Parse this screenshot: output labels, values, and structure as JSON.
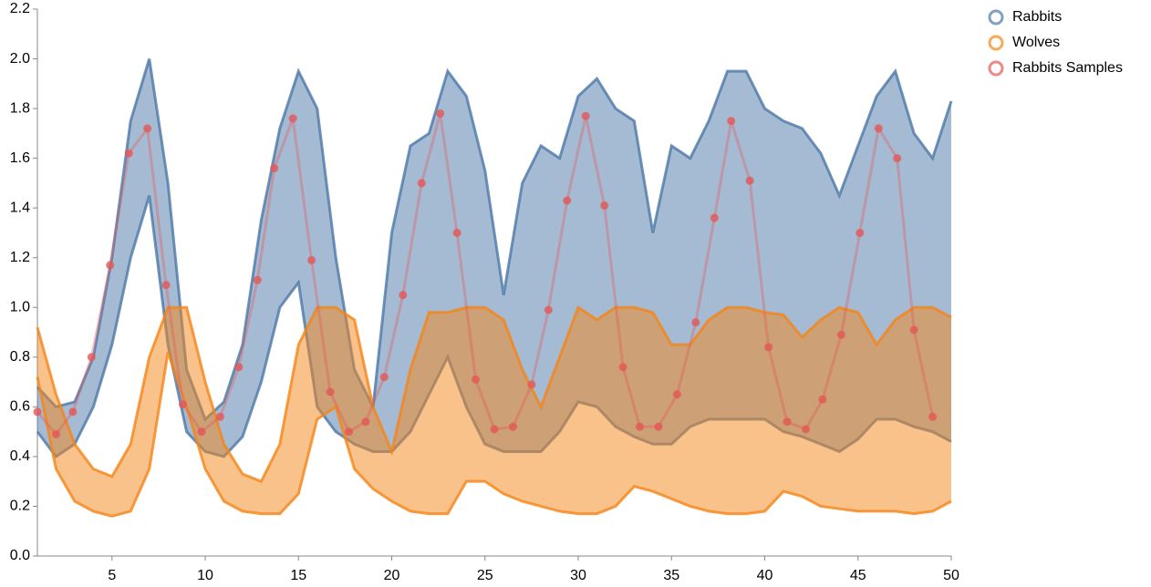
{
  "chart_data": {
    "type": "band",
    "x": [
      1,
      2,
      3,
      4,
      5,
      6,
      7,
      8,
      9,
      10,
      11,
      12,
      13,
      14,
      15,
      16,
      17,
      18,
      19,
      20,
      21,
      22,
      23,
      24,
      25,
      26,
      27,
      28,
      29,
      30,
      31,
      32,
      33,
      34,
      35,
      36,
      37,
      38,
      39,
      40,
      41,
      42,
      43,
      44,
      45,
      46,
      47,
      48,
      49,
      50
    ],
    "series": [
      {
        "name": "Rabbits",
        "color": "#4c78a8",
        "lower": [
          0.5,
          0.4,
          0.45,
          0.6,
          0.85,
          1.2,
          1.45,
          0.85,
          0.5,
          0.42,
          0.4,
          0.48,
          0.7,
          1.0,
          1.1,
          0.6,
          0.5,
          0.45,
          0.42,
          0.42,
          0.5,
          0.65,
          0.8,
          0.6,
          0.45,
          0.42,
          0.42,
          0.42,
          0.5,
          0.62,
          0.6,
          0.52,
          0.48,
          0.45,
          0.45,
          0.52,
          0.55,
          0.55,
          0.55,
          0.55,
          0.5,
          0.48,
          0.45,
          0.42,
          0.47,
          0.55,
          0.55,
          0.52,
          0.5,
          0.46
        ],
        "upper": [
          0.68,
          0.6,
          0.62,
          0.8,
          1.2,
          1.75,
          2.0,
          1.5,
          0.75,
          0.55,
          0.62,
          0.85,
          1.35,
          1.72,
          1.95,
          1.8,
          1.2,
          0.75,
          0.6,
          1.3,
          1.65,
          1.7,
          1.95,
          1.85,
          1.55,
          1.05,
          1.5,
          1.65,
          1.6,
          1.85,
          1.92,
          1.8,
          1.75,
          1.3,
          1.65,
          1.6,
          1.75,
          1.95,
          1.95,
          1.8,
          1.75,
          1.72,
          1.62,
          1.45,
          1.65,
          1.85,
          1.95,
          1.7,
          1.6,
          1.83
        ]
      },
      {
        "name": "Wolves",
        "color": "#f58518",
        "lower": [
          0.72,
          0.35,
          0.22,
          0.18,
          0.16,
          0.18,
          0.35,
          0.82,
          0.6,
          0.35,
          0.22,
          0.18,
          0.17,
          0.17,
          0.25,
          0.55,
          0.6,
          0.35,
          0.27,
          0.22,
          0.18,
          0.17,
          0.17,
          0.3,
          0.3,
          0.25,
          0.22,
          0.2,
          0.18,
          0.17,
          0.17,
          0.2,
          0.28,
          0.26,
          0.23,
          0.2,
          0.18,
          0.17,
          0.17,
          0.18,
          0.26,
          0.24,
          0.2,
          0.19,
          0.18,
          0.18,
          0.18,
          0.17,
          0.18,
          0.22
        ],
        "upper": [
          0.92,
          0.65,
          0.45,
          0.35,
          0.32,
          0.45,
          0.8,
          1.0,
          1.0,
          0.7,
          0.45,
          0.33,
          0.3,
          0.45,
          0.85,
          1.0,
          1.0,
          0.95,
          0.6,
          0.42,
          0.75,
          0.98,
          0.98,
          1.0,
          1.0,
          0.95,
          0.75,
          0.6,
          0.8,
          1.0,
          0.95,
          1.0,
          1.0,
          0.98,
          0.85,
          0.85,
          0.95,
          1.0,
          1.0,
          0.98,
          0.97,
          0.88,
          0.95,
          1.0,
          0.98,
          0.85,
          0.95,
          1.0,
          1.0,
          0.96
        ]
      },
      {
        "name": "Rabbits Samples",
        "color": "#e45756",
        "x": [
          1.0,
          2.0,
          2.9,
          3.9,
          4.9,
          5.9,
          6.9,
          7.9,
          8.8,
          9.8,
          10.8,
          11.8,
          12.8,
          13.7,
          14.7,
          15.7,
          16.7,
          17.7,
          18.6,
          19.6,
          20.6,
          21.6,
          22.6,
          23.5,
          24.5,
          25.5,
          26.5,
          27.5,
          28.4,
          29.4,
          30.4,
          31.4,
          32.4,
          33.3,
          34.3,
          35.3,
          36.3,
          37.3,
          38.2,
          39.2,
          40.2,
          41.2,
          42.2,
          43.1,
          44.1,
          45.1,
          46.1,
          47.1,
          48.0,
          49.0
        ],
        "values": [
          0.58,
          0.49,
          0.58,
          0.8,
          1.17,
          1.62,
          1.72,
          1.09,
          0.61,
          0.5,
          0.56,
          0.76,
          1.11,
          1.56,
          1.76,
          1.19,
          0.66,
          0.5,
          0.54,
          0.72,
          1.05,
          1.5,
          1.78,
          1.3,
          0.71,
          0.51,
          0.52,
          0.69,
          0.99,
          1.43,
          1.77,
          1.41,
          0.76,
          0.52,
          0.52,
          0.65,
          0.94,
          1.36,
          1.75,
          1.51,
          0.84,
          0.54,
          0.51,
          0.63,
          0.89,
          1.3,
          1.72,
          1.6,
          0.91,
          0.56
        ]
      }
    ],
    "xlim": [
      1,
      50
    ],
    "xticks": [
      5,
      10,
      15,
      20,
      25,
      30,
      35,
      40,
      45,
      50
    ],
    "ylim": [
      0,
      2.2
    ],
    "yticks": [
      {
        "value": 0,
        "label": "0.0"
      },
      {
        "value": 0.2,
        "label": "0.2"
      },
      {
        "value": 0.4,
        "label": "0.4"
      },
      {
        "value": 0.6,
        "label": "0.6"
      },
      {
        "value": 0.8,
        "label": "0.8"
      },
      {
        "value": 1,
        "label": "1.0"
      },
      {
        "value": 1.2,
        "label": "1.2"
      },
      {
        "value": 1.4,
        "label": "1.4"
      },
      {
        "value": 1.6,
        "label": "1.6"
      },
      {
        "value": 1.8,
        "label": "1.8"
      },
      {
        "value": 2,
        "label": "2.0"
      },
      {
        "value": 2.2,
        "label": "2.2"
      }
    ],
    "legend": "top-right"
  }
}
